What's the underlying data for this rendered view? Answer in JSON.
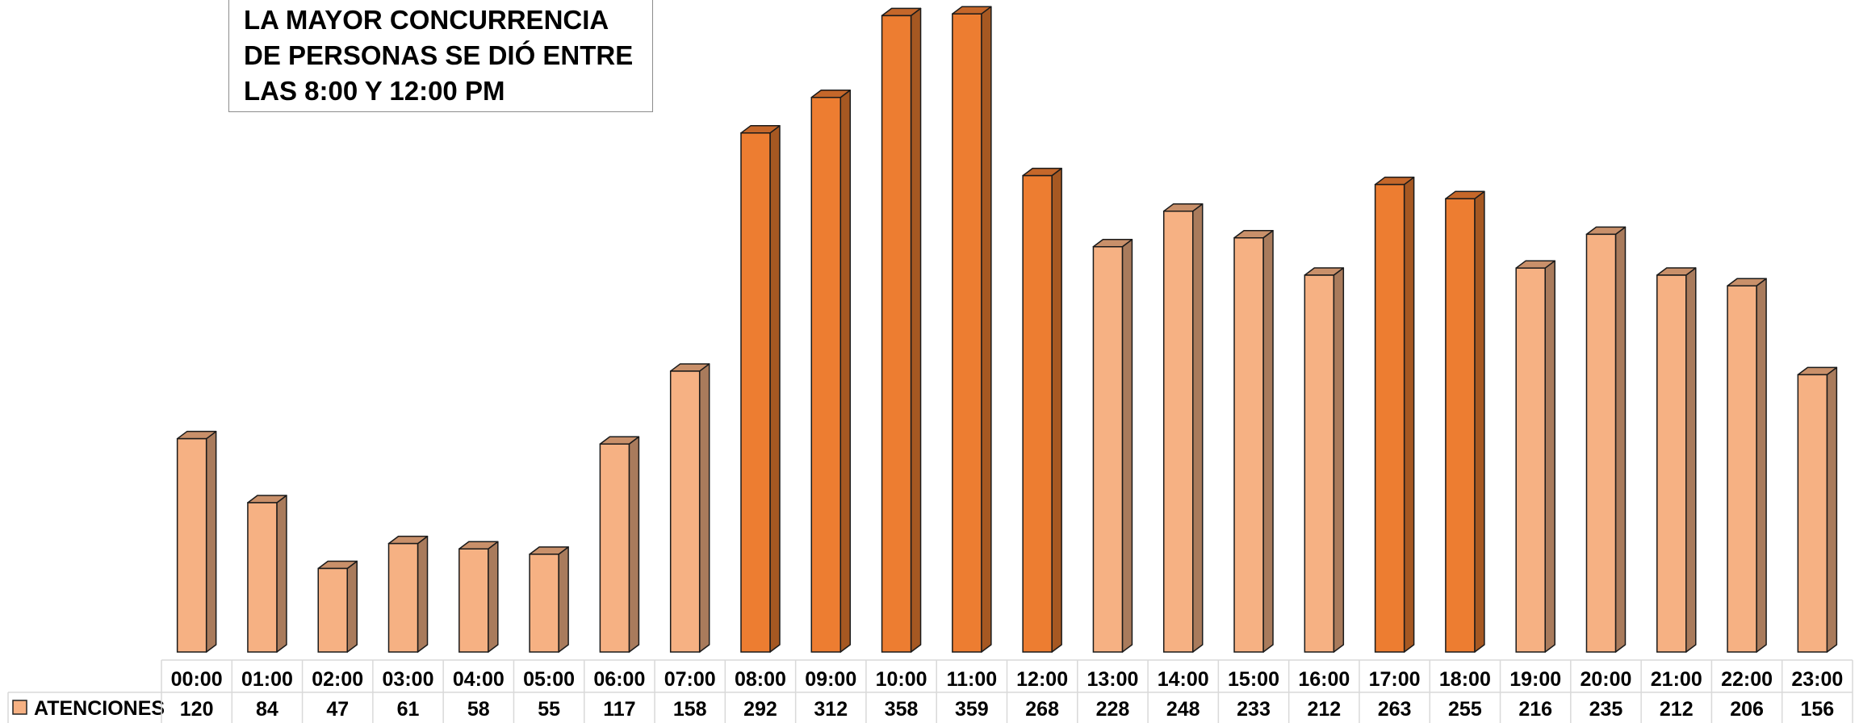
{
  "annotation": {
    "text": "LA MAYOR CONCURRENCIA DE PERSONAS SE DIÓ ENTRE LAS 8:00 Y 12:00 PM"
  },
  "colors": {
    "bar_light": "#f6b183",
    "bar_light_side": "#a97b5c",
    "bar_light_top": "#c9906a",
    "bar_dark": "#ed7d31",
    "bar_dark_side": "#a65822",
    "bar_dark_top": "#c5672a",
    "grid": "#d9d9d9",
    "legend_swatch": "#f6b183"
  },
  "chart_data": {
    "type": "bar",
    "title": "",
    "xlabel": "",
    "ylabel": "",
    "ylim": [
      0,
      360
    ],
    "grid": false,
    "legend": "data-table-left",
    "categories": [
      "00:00",
      "01:00",
      "02:00",
      "03:00",
      "04:00",
      "05:00",
      "06:00",
      "07:00",
      "08:00",
      "09:00",
      "10:00",
      "11:00",
      "12:00",
      "13:00",
      "14:00",
      "15:00",
      "16:00",
      "17:00",
      "18:00",
      "19:00",
      "20:00",
      "21:00",
      "22:00",
      "23:00"
    ],
    "highlighted": [
      "08:00",
      "09:00",
      "10:00",
      "11:00",
      "12:00",
      "17:00",
      "18:00"
    ],
    "series": [
      {
        "name": "ATENCIONES",
        "values": [
          120,
          84,
          47,
          61,
          58,
          55,
          117,
          158,
          292,
          312,
          358,
          359,
          268,
          228,
          248,
          233,
          212,
          263,
          255,
          216,
          235,
          212,
          206,
          156
        ]
      }
    ]
  }
}
